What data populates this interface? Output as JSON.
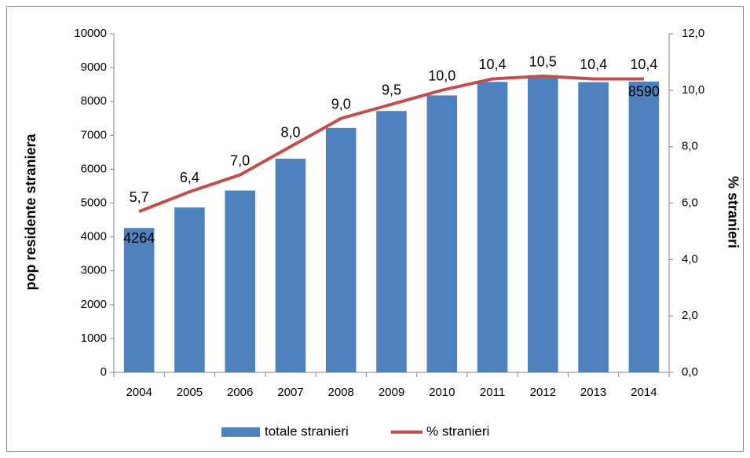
{
  "chart_data": {
    "type": "combo",
    "categories": [
      "2004",
      "2005",
      "2006",
      "2007",
      "2008",
      "2009",
      "2010",
      "2011",
      "2012",
      "2013",
      "2014"
    ],
    "series": [
      {
        "name": "totale stranieri",
        "type": "bar",
        "color": "#4f81bd",
        "axis": "y",
        "values": [
          4264,
          4870,
          5370,
          6310,
          7220,
          7720,
          8180,
          8580,
          8780,
          8570,
          8590
        ],
        "value_labels": [
          "4264",
          null,
          null,
          null,
          null,
          null,
          null,
          null,
          null,
          null,
          "8590"
        ]
      },
      {
        "name": "% stranieri",
        "type": "line",
        "color": "#c0504d",
        "axis": "y2",
        "values": [
          5.7,
          6.4,
          7.0,
          8.0,
          9.0,
          9.5,
          10.0,
          10.4,
          10.5,
          10.4,
          10.4
        ],
        "value_labels": [
          "5,7",
          "6,4",
          "7,0",
          "8,0",
          "9,0",
          "9,5",
          "10,0",
          "10,4",
          "10,5",
          "10,4",
          "10,4"
        ]
      }
    ],
    "ylabel": "pop residente straniera",
    "y2label": "% stranieri",
    "ylim": [
      0,
      10000
    ],
    "yticks": [
      0,
      1000,
      2000,
      3000,
      4000,
      5000,
      6000,
      7000,
      8000,
      9000,
      10000
    ],
    "y2lim": [
      0,
      12
    ],
    "y2ticks": [
      {
        "value": 0,
        "label": "0,0"
      },
      {
        "value": 2,
        "label": "2,0"
      },
      {
        "value": 4,
        "label": "4,0"
      },
      {
        "value": 6,
        "label": "6,0"
      },
      {
        "value": 8,
        "label": "8,0"
      },
      {
        "value": 10,
        "label": "10,0"
      },
      {
        "value": 12,
        "label": "12,0"
      }
    ],
    "legend": "bottom"
  }
}
